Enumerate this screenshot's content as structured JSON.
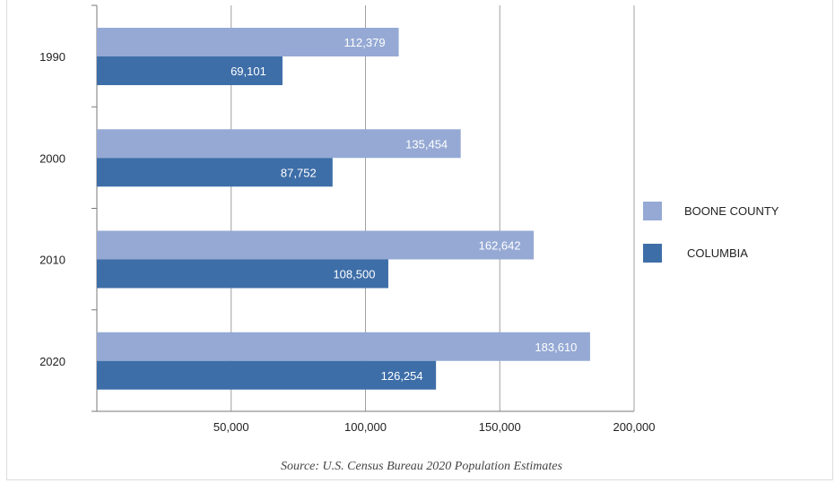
{
  "chart_data": {
    "type": "bar",
    "orientation": "horizontal",
    "categories": [
      "1990",
      "2000",
      "2010",
      "2020"
    ],
    "series": [
      {
        "name": "BOONE COUNTY",
        "color": "#95a9d4",
        "values": [
          112379,
          135454,
          162642,
          183610
        ],
        "labels": [
          "112,379",
          "135,454",
          "162,642",
          "183,610"
        ]
      },
      {
        "name": "COLUMBIA",
        "color": "#3e6ea8",
        "values": [
          69101,
          87752,
          108500,
          126254
        ],
        "labels": [
          "69,101",
          "87,752",
          "108,500",
          "126,254"
        ]
      }
    ],
    "xlim": [
      0,
      200000
    ],
    "xticks": [
      50000,
      100000,
      150000,
      200000
    ],
    "xtick_labels": [
      "50,000",
      "100,000",
      "150,000",
      "200,000"
    ],
    "grid": true,
    "legend_position": "right",
    "source": "Source: U.S. Census Bureau 2020 Population Estimates"
  }
}
